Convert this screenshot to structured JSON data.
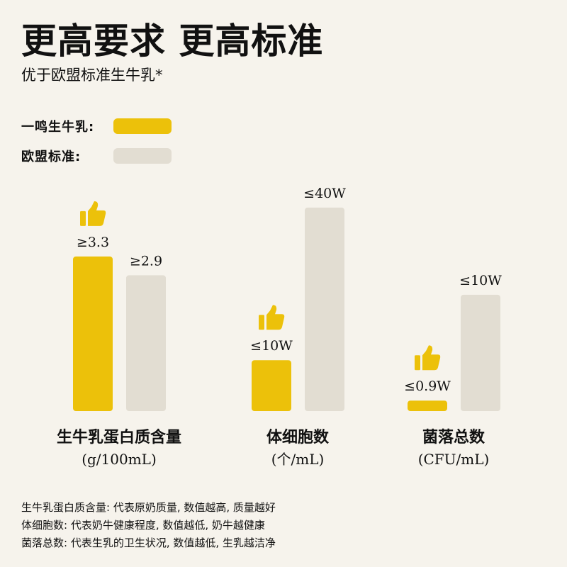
{
  "header": {
    "title": "更高要求  更高标准",
    "subtitle": "优于欧盟标准生牛乳*"
  },
  "legend": {
    "items": [
      {
        "label": "一鸣生牛乳:",
        "color": "#ecc10a"
      },
      {
        "label": "欧盟标准:",
        "color": "#e2ddd2"
      }
    ]
  },
  "colors": {
    "yiming": "#ecc10a",
    "eu": "#e2ddd2",
    "background": "#f6f3ec",
    "text": "#111111"
  },
  "icons": {
    "highlight": "thumbs-up-icon"
  },
  "chart_data": {
    "type": "bar",
    "note": "each category uses its own scale",
    "series": [
      {
        "name": "一鸣生牛乳",
        "color": "#ecc10a",
        "values": [
          3.3,
          10,
          0.9
        ],
        "labels": [
          "≥3.3",
          "≤10W",
          "≤0.9W"
        ]
      },
      {
        "name": "欧盟标准",
        "color": "#e2ddd2",
        "values": [
          2.9,
          40,
          10
        ],
        "labels": [
          "≥2.9",
          "≤40W",
          "≤10W"
        ]
      }
    ],
    "categories": [
      {
        "name": "生牛乳蛋白质含量",
        "unit": "(g/100mL)",
        "max": 3.3
      },
      {
        "name": "体细胞数",
        "unit": "(个/mL)",
        "max": 40
      },
      {
        "name": "菌落总数",
        "unit": "(CFU/mL)",
        "max": 10
      }
    ],
    "display_max_ratio": [
      0.727,
      0.957,
      0.547
    ]
  },
  "notes": [
    "生牛乳蛋白质含量: 代表原奶质量, 数值越高, 质量越好",
    "体细胞数: 代表奶牛健康程度, 数值越低, 奶牛越健康",
    "菌落总数: 代表生乳的卫生状况, 数值越低, 生乳越洁净"
  ]
}
